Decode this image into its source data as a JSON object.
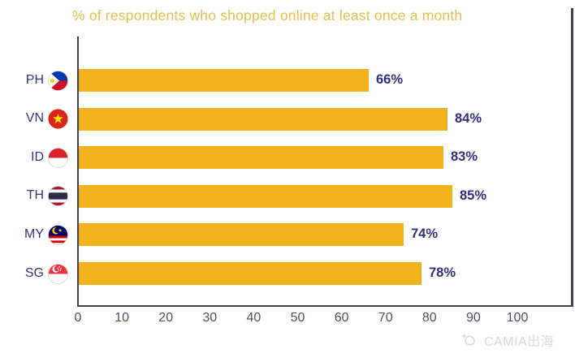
{
  "title": "% of respondents who shopped online at least once a month",
  "watermark": {
    "logo": "camia-logo",
    "text": "CAMIA出海",
    "color": "#d9d9d9"
  },
  "chart_data": {
    "type": "bar",
    "orientation": "horizontal",
    "title": "% of respondents who shopped online at least once a month",
    "categories": [
      "PH",
      "VN",
      "ID",
      "TH",
      "MY",
      "SG"
    ],
    "values": [
      66,
      84,
      83,
      85,
      74,
      78
    ],
    "value_labels": [
      "66%",
      "84%",
      "83%",
      "85%",
      "74%",
      "78%"
    ],
    "flag_icons": [
      "ph-flag-icon",
      "vn-flag-icon",
      "id-flag-icon",
      "th-flag-icon",
      "my-flag-icon",
      "sg-flag-icon"
    ],
    "xlabel": "",
    "ylabel": "",
    "xlim": [
      0,
      100
    ],
    "x_ticks": [
      0,
      10,
      20,
      30,
      40,
      50,
      60,
      70,
      80,
      90,
      100
    ],
    "grid": false,
    "legend": false,
    "colors": {
      "bar": "#F2B31E",
      "title": "#E6BE4D",
      "category_label": "#32347C",
      "value_label": "#2F2F7B",
      "tick_label": "#50505E",
      "axis_line": "#3F4254"
    }
  }
}
